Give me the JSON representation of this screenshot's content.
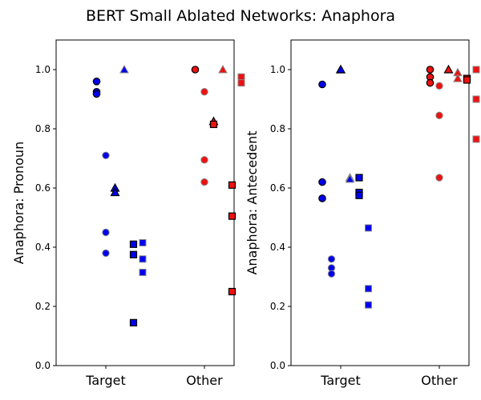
{
  "figure": {
    "title": "BERT Small Ablated Networks: Anaphora"
  },
  "chart_data": [
    {
      "type": "scatter",
      "ylabel": "Anaphora: Pronoun",
      "xlabel": "",
      "categories": [
        "Target",
        "Other"
      ],
      "ylim": [
        0.0,
        1.1
      ],
      "yticks": [
        "0.0",
        "0.2",
        "0.4",
        "0.6",
        "0.8",
        "1.0"
      ],
      "grid": false,
      "colors": {
        "Target": "#0000ee",
        "Other": "#ee1111",
        "edge_dark": "#000000",
        "edge_gray": "#888888"
      },
      "points": [
        {
          "category": "Target",
          "offset": -0.1,
          "y": 0.96,
          "marker": "circle",
          "edge": "dark"
        },
        {
          "category": "Target",
          "offset": -0.1,
          "y": 0.925,
          "marker": "circle",
          "edge": "dark"
        },
        {
          "category": "Target",
          "offset": -0.1,
          "y": 0.918,
          "marker": "circle",
          "edge": "dark"
        },
        {
          "category": "Target",
          "offset": 0.0,
          "y": 0.71,
          "marker": "circle",
          "edge": "gray"
        },
        {
          "category": "Target",
          "offset": 0.0,
          "y": 0.45,
          "marker": "circle",
          "edge": "gray"
        },
        {
          "category": "Target",
          "offset": 0.0,
          "y": 0.38,
          "marker": "circle",
          "edge": "gray"
        },
        {
          "category": "Target",
          "offset": 0.1,
          "y": 0.6,
          "marker": "triangle",
          "edge": "dark"
        },
        {
          "category": "Target",
          "offset": 0.1,
          "y": 0.585,
          "marker": "triangle",
          "edge": "dark"
        },
        {
          "category": "Target",
          "offset": 0.2,
          "y": 1.0,
          "marker": "triangle",
          "edge": "gray"
        },
        {
          "category": "Target",
          "offset": 0.3,
          "y": 0.41,
          "marker": "square",
          "edge": "dark"
        },
        {
          "category": "Target",
          "offset": 0.3,
          "y": 0.375,
          "marker": "square",
          "edge": "dark"
        },
        {
          "category": "Target",
          "offset": 0.3,
          "y": 0.145,
          "marker": "square",
          "edge": "dark"
        },
        {
          "category": "Target",
          "offset": 0.4,
          "y": 0.415,
          "marker": "square",
          "edge": "gray"
        },
        {
          "category": "Target",
          "offset": 0.4,
          "y": 0.36,
          "marker": "square",
          "edge": "gray"
        },
        {
          "category": "Target",
          "offset": 0.4,
          "y": 0.315,
          "marker": "square",
          "edge": "gray"
        },
        {
          "category": "Other",
          "offset": -0.1,
          "y": 1.0,
          "marker": "circle",
          "edge": "dark"
        },
        {
          "category": "Other",
          "offset": 0.0,
          "y": 0.925,
          "marker": "circle",
          "edge": "gray"
        },
        {
          "category": "Other",
          "offset": 0.0,
          "y": 0.695,
          "marker": "circle",
          "edge": "gray"
        },
        {
          "category": "Other",
          "offset": 0.0,
          "y": 0.62,
          "marker": "circle",
          "edge": "gray"
        },
        {
          "category": "Other",
          "offset": 0.1,
          "y": 0.825,
          "marker": "triangle",
          "edge": "dark"
        },
        {
          "category": "Other",
          "offset": 0.1,
          "y": 0.815,
          "marker": "square",
          "edge": "dark"
        },
        {
          "category": "Other",
          "offset": 0.2,
          "y": 1.0,
          "marker": "triangle",
          "edge": "gray"
        },
        {
          "category": "Other",
          "offset": 0.3,
          "y": 0.61,
          "marker": "square",
          "edge": "dark"
        },
        {
          "category": "Other",
          "offset": 0.3,
          "y": 0.505,
          "marker": "square",
          "edge": "dark"
        },
        {
          "category": "Other",
          "offset": 0.3,
          "y": 0.25,
          "marker": "square",
          "edge": "dark"
        },
        {
          "category": "Other",
          "offset": 0.4,
          "y": 0.975,
          "marker": "square",
          "edge": "gray"
        },
        {
          "category": "Other",
          "offset": 0.4,
          "y": 0.955,
          "marker": "square",
          "edge": "gray"
        }
      ]
    },
    {
      "type": "scatter",
      "ylabel": "Anaphora: Antecedent",
      "xlabel": "",
      "categories": [
        "Target",
        "Other"
      ],
      "ylim": [
        0.0,
        1.1
      ],
      "yticks": [
        "0.0",
        "0.2",
        "0.4",
        "0.6",
        "0.8",
        "1.0"
      ],
      "grid": false,
      "colors": {
        "Target": "#0000ee",
        "Other": "#ee1111",
        "edge_dark": "#000000",
        "edge_gray": "#888888"
      },
      "points": [
        {
          "category": "Target",
          "offset": -0.2,
          "y": 0.95,
          "marker": "circle",
          "edge": "dark"
        },
        {
          "category": "Target",
          "offset": -0.2,
          "y": 0.62,
          "marker": "circle",
          "edge": "dark"
        },
        {
          "category": "Target",
          "offset": -0.2,
          "y": 0.565,
          "marker": "circle",
          "edge": "dark"
        },
        {
          "category": "Target",
          "offset": -0.1,
          "y": 0.36,
          "marker": "circle",
          "edge": "gray"
        },
        {
          "category": "Target",
          "offset": -0.1,
          "y": 0.33,
          "marker": "circle",
          "edge": "gray"
        },
        {
          "category": "Target",
          "offset": -0.1,
          "y": 0.31,
          "marker": "circle",
          "edge": "gray"
        },
        {
          "category": "Target",
          "offset": 0.0,
          "y": 1.0,
          "marker": "triangle",
          "edge": "dark"
        },
        {
          "category": "Target",
          "offset": 0.0,
          "y": 1.0,
          "marker": "triangle",
          "edge": "dark"
        },
        {
          "category": "Target",
          "offset": 0.1,
          "y": 0.635,
          "marker": "triangle",
          "edge": "gray"
        },
        {
          "category": "Target",
          "offset": 0.1,
          "y": 0.63,
          "marker": "triangle",
          "edge": "gray"
        },
        {
          "category": "Target",
          "offset": 0.2,
          "y": 0.635,
          "marker": "square",
          "edge": "dark"
        },
        {
          "category": "Target",
          "offset": 0.2,
          "y": 0.585,
          "marker": "square",
          "edge": "dark"
        },
        {
          "category": "Target",
          "offset": 0.2,
          "y": 0.575,
          "marker": "square",
          "edge": "dark"
        },
        {
          "category": "Target",
          "offset": 0.3,
          "y": 0.465,
          "marker": "square",
          "edge": "gray"
        },
        {
          "category": "Target",
          "offset": 0.3,
          "y": 0.26,
          "marker": "square",
          "edge": "gray"
        },
        {
          "category": "Target",
          "offset": 0.3,
          "y": 0.205,
          "marker": "square",
          "edge": "gray"
        },
        {
          "category": "Other",
          "offset": -0.1,
          "y": 1.0,
          "marker": "circle",
          "edge": "dark"
        },
        {
          "category": "Other",
          "offset": -0.1,
          "y": 0.975,
          "marker": "circle",
          "edge": "dark"
        },
        {
          "category": "Other",
          "offset": -0.1,
          "y": 0.955,
          "marker": "circle",
          "edge": "dark"
        },
        {
          "category": "Other",
          "offset": 0.0,
          "y": 0.945,
          "marker": "circle",
          "edge": "gray"
        },
        {
          "category": "Other",
          "offset": 0.0,
          "y": 0.845,
          "marker": "circle",
          "edge": "gray"
        },
        {
          "category": "Other",
          "offset": 0.0,
          "y": 0.635,
          "marker": "circle",
          "edge": "gray"
        },
        {
          "category": "Other",
          "offset": 0.1,
          "y": 1.0,
          "marker": "triangle",
          "edge": "dark"
        },
        {
          "category": "Other",
          "offset": 0.2,
          "y": 0.99,
          "marker": "triangle",
          "edge": "gray"
        },
        {
          "category": "Other",
          "offset": 0.2,
          "y": 0.97,
          "marker": "triangle",
          "edge": "gray"
        },
        {
          "category": "Other",
          "offset": 0.3,
          "y": 0.97,
          "marker": "square",
          "edge": "dark"
        },
        {
          "category": "Other",
          "offset": 0.3,
          "y": 0.965,
          "marker": "square",
          "edge": "dark"
        },
        {
          "category": "Other",
          "offset": 0.4,
          "y": 1.0,
          "marker": "square",
          "edge": "gray"
        },
        {
          "category": "Other",
          "offset": 0.4,
          "y": 0.9,
          "marker": "square",
          "edge": "gray"
        },
        {
          "category": "Other",
          "offset": 0.4,
          "y": 0.765,
          "marker": "square",
          "edge": "gray"
        }
      ]
    }
  ]
}
